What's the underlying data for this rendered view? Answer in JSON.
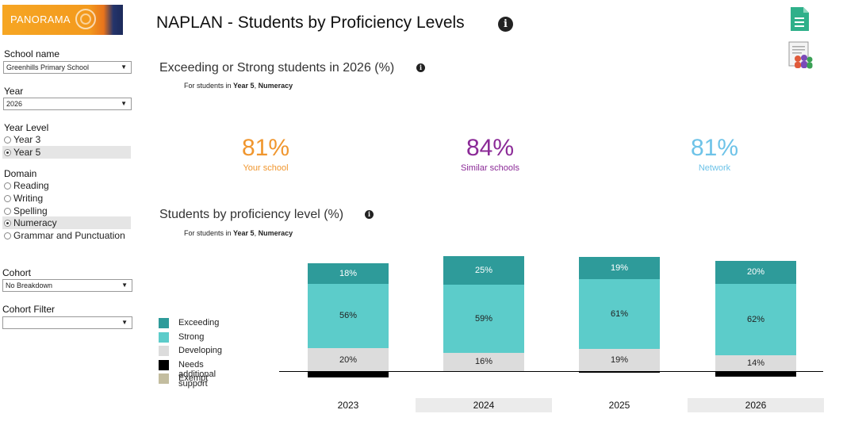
{
  "logo": {
    "text": "PANORAMA"
  },
  "sidebar": {
    "school_label": "School name",
    "school_value": "Greenhills Primary School",
    "year_label": "Year",
    "year_value": "2026",
    "year_level_label": "Year Level",
    "year_levels": [
      {
        "label": "Year 3",
        "selected": false
      },
      {
        "label": "Year 5",
        "selected": true
      }
    ],
    "domain_label": "Domain",
    "domains": [
      {
        "label": "Reading",
        "selected": false
      },
      {
        "label": "Writing",
        "selected": false
      },
      {
        "label": "Spelling",
        "selected": false
      },
      {
        "label": "Numeracy",
        "selected": true
      },
      {
        "label": "Grammar and Punctuation",
        "selected": false
      }
    ],
    "cohort_label": "Cohort",
    "cohort_value": "No Breakdown",
    "cohort_filter_label": "Cohort Filter",
    "cohort_filter_value": ""
  },
  "header": {
    "title": "NAPLAN - Students by Proficiency Levels",
    "info_icon": "info-icon"
  },
  "toolbar": {
    "doc_icon": "document-icon",
    "report_icon": "people-report-icon"
  },
  "summary": {
    "title": "Exceeding or Strong students in 2026 (%)",
    "sub_prefix": "For students in ",
    "sub_year": "Year 5",
    "sub_sep": ", ",
    "sub_domain": "Numeracy",
    "cards": [
      {
        "value": "81%",
        "label": "Your school",
        "color": "#f0962e"
      },
      {
        "value": "84%",
        "label": "Similar schools",
        "color": "#8b2a97"
      },
      {
        "value": "81%",
        "label": "Network",
        "color": "#6ec3e8"
      }
    ]
  },
  "proficiency": {
    "title": "Students by proficiency level (%)",
    "sub_prefix": "For students in ",
    "sub_year": "Year 5",
    "sub_sep": ", ",
    "sub_domain": "Numeracy"
  },
  "legend": [
    {
      "label": "Exceeding",
      "color": "#2e9b9a"
    },
    {
      "label": "Strong",
      "color": "#5cccca"
    },
    {
      "label": "Developing",
      "color": "#dcdcdc"
    },
    {
      "label": "Needs additional support",
      "color": "#000000"
    },
    {
      "label": "Exempt",
      "color": "#c3bd9f"
    }
  ],
  "chart_data": {
    "type": "bar",
    "stacked": true,
    "title": "Students by proficiency level (%)",
    "categories": [
      "2023",
      "2024",
      "2025",
      "2026"
    ],
    "series": [
      {
        "name": "Exceeding",
        "values": [
          18,
          25,
          19,
          20
        ],
        "labels": [
          "18%",
          "25%",
          "19%",
          "20%"
        ]
      },
      {
        "name": "Strong",
        "values": [
          56,
          59,
          61,
          62
        ],
        "labels": [
          "56%",
          "59%",
          "61%",
          "62%"
        ]
      },
      {
        "name": "Developing",
        "values": [
          20,
          16,
          19,
          14
        ],
        "labels": [
          "20%",
          "16%",
          "19%",
          "14%"
        ]
      },
      {
        "name": "Needs additional support",
        "values": [
          5,
          0,
          1,
          4
        ]
      },
      {
        "name": "Exempt",
        "values": [
          0,
          0,
          0,
          0
        ]
      }
    ],
    "baseline_between": [
      "Developing",
      "Needs additional support"
    ],
    "highlighted_categories": [
      "2024",
      "2026"
    ]
  }
}
